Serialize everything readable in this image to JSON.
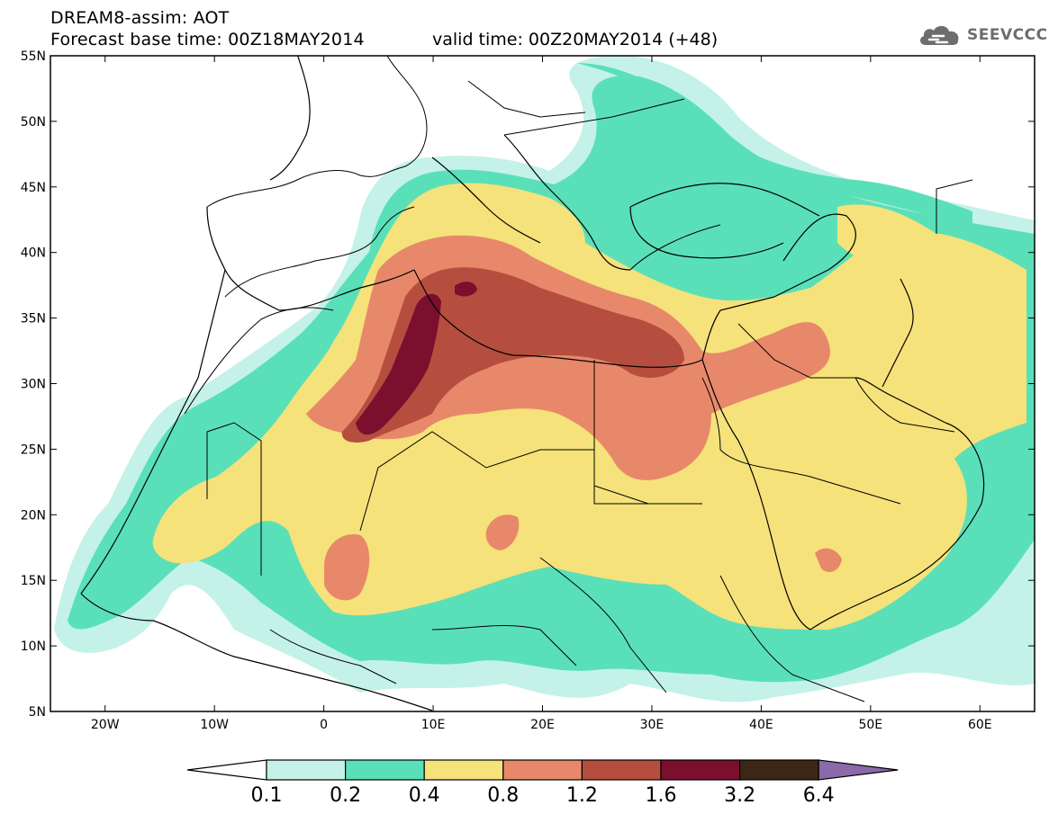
{
  "header": {
    "title": "DREAM8-assim: AOT",
    "base_time": "Forecast base time: 00Z18MAY2014",
    "valid_time": "valid time: 00Z20MAY2014 (+48)"
  },
  "logo": {
    "text": "SEEVCCC",
    "icon": "cloud-logo-icon"
  },
  "map": {
    "projection": "lat-lon",
    "lon_range": [
      -25,
      65
    ],
    "lat_range": [
      5,
      55
    ],
    "lat_ticks": [
      "5N",
      "10N",
      "15N",
      "20N",
      "25N",
      "30N",
      "35N",
      "40N",
      "45N",
      "50N",
      "55N"
    ],
    "lon_ticks": [
      "20W",
      "10W",
      "0",
      "10E",
      "20E",
      "30E",
      "40E",
      "50E",
      "60E"
    ]
  },
  "colorbar": {
    "labels": [
      "0.1",
      "0.2",
      "0.4",
      "0.8",
      "1.2",
      "1.6",
      "3.2",
      "6.4"
    ],
    "colors": [
      "#c4f2e8",
      "#5ae0b8",
      "#f5e27a",
      "#e8886a",
      "#b54e3e",
      "#7a0f2e",
      "#3c2716",
      "#8a6aa8"
    ],
    "under_color": "#ffffff"
  }
}
